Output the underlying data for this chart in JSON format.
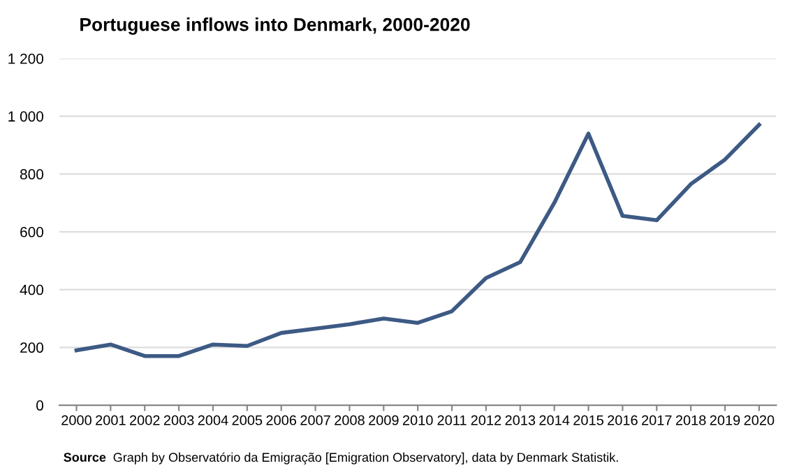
{
  "chart_data": {
    "type": "line",
    "title": "Portuguese inflows into Denmark, 2000-2020",
    "categories": [
      "2000",
      "2001",
      "2002",
      "2003",
      "2004",
      "2005",
      "2006",
      "2007",
      "2008",
      "2009",
      "2010",
      "2011",
      "2012",
      "2013",
      "2014",
      "2015",
      "2016",
      "2017",
      "2018",
      "2019",
      "2020"
    ],
    "series": [
      {
        "color": "#3d5a84",
        "values": [
          190,
          210,
          170,
          170,
          210,
          205,
          250,
          265,
          280,
          300,
          285,
          325,
          440,
          495,
          700,
          940,
          655,
          640,
          765,
          850,
          970
        ]
      }
    ],
    "ylim": [
      0,
      1200
    ],
    "yticks": [
      0,
      200,
      400,
      600,
      800,
      {
        "value": 1000,
        "label": "1 000"
      },
      {
        "value": 1200,
        "label": "1 200"
      }
    ],
    "grid": "y",
    "legend": false,
    "marker": "none",
    "line_style": "solid",
    "annotations": [
      "Source",
      "Graph by Observatório da Emigração [Emigration Observatory], data by Denmark Statistik."
    ]
  }
}
